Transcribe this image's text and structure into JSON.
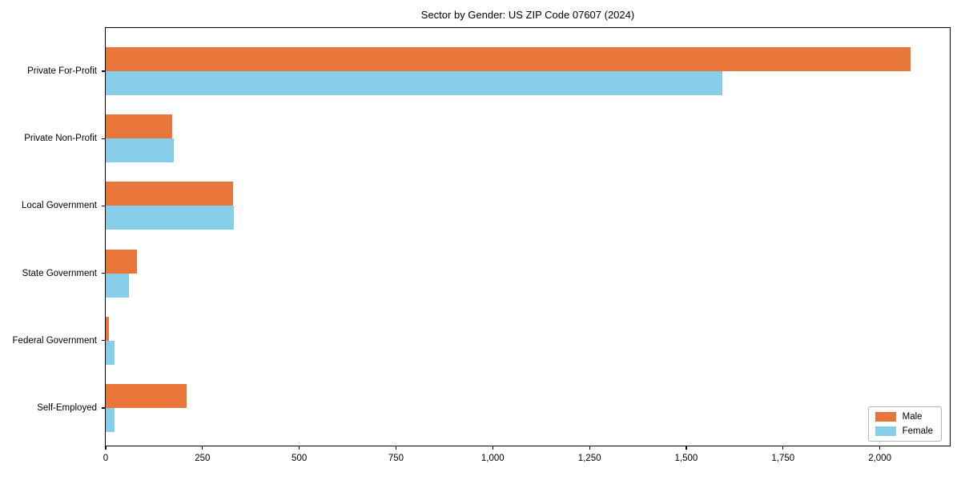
{
  "title": "Sector by Gender: US ZIP Code 07607 (2024)",
  "colors": {
    "male": "#E8763A",
    "female": "#87CEEB",
    "frame": "#000000",
    "legend_border": "#b4b4b4",
    "background": "#ffffff"
  },
  "legend": {
    "items": [
      {
        "label": "Male",
        "color": "#E8763A"
      },
      {
        "label": "Female",
        "color": "#87CEEB"
      }
    ]
  },
  "chart_data": {
    "type": "bar",
    "orientation": "horizontal",
    "title": "Sector by Gender: US ZIP Code 07607 (2024)",
    "xlabel": "",
    "ylabel": "",
    "categories": [
      "Private For-Profit",
      "Private Non-Profit",
      "Local Government",
      "State Government",
      "Federal Government",
      "Self-Employed"
    ],
    "series": [
      {
        "name": "Male",
        "color": "#E8763A",
        "values": [
          2080,
          171,
          329,
          81,
          9,
          208
        ]
      },
      {
        "name": "Female",
        "color": "#87CEEB",
        "values": [
          1593,
          176,
          331,
          59,
          22,
          22
        ]
      }
    ],
    "xlim": [
      0,
      2185
    ],
    "xticks": [
      0,
      250,
      500,
      750,
      1000,
      1250,
      1500,
      1750,
      2000
    ],
    "xtick_labels": [
      "0",
      "250",
      "500",
      "750",
      "1,000",
      "1,250",
      "1,500",
      "1,750",
      "2,000"
    ],
    "grid": false,
    "legend_position": "lower right"
  }
}
